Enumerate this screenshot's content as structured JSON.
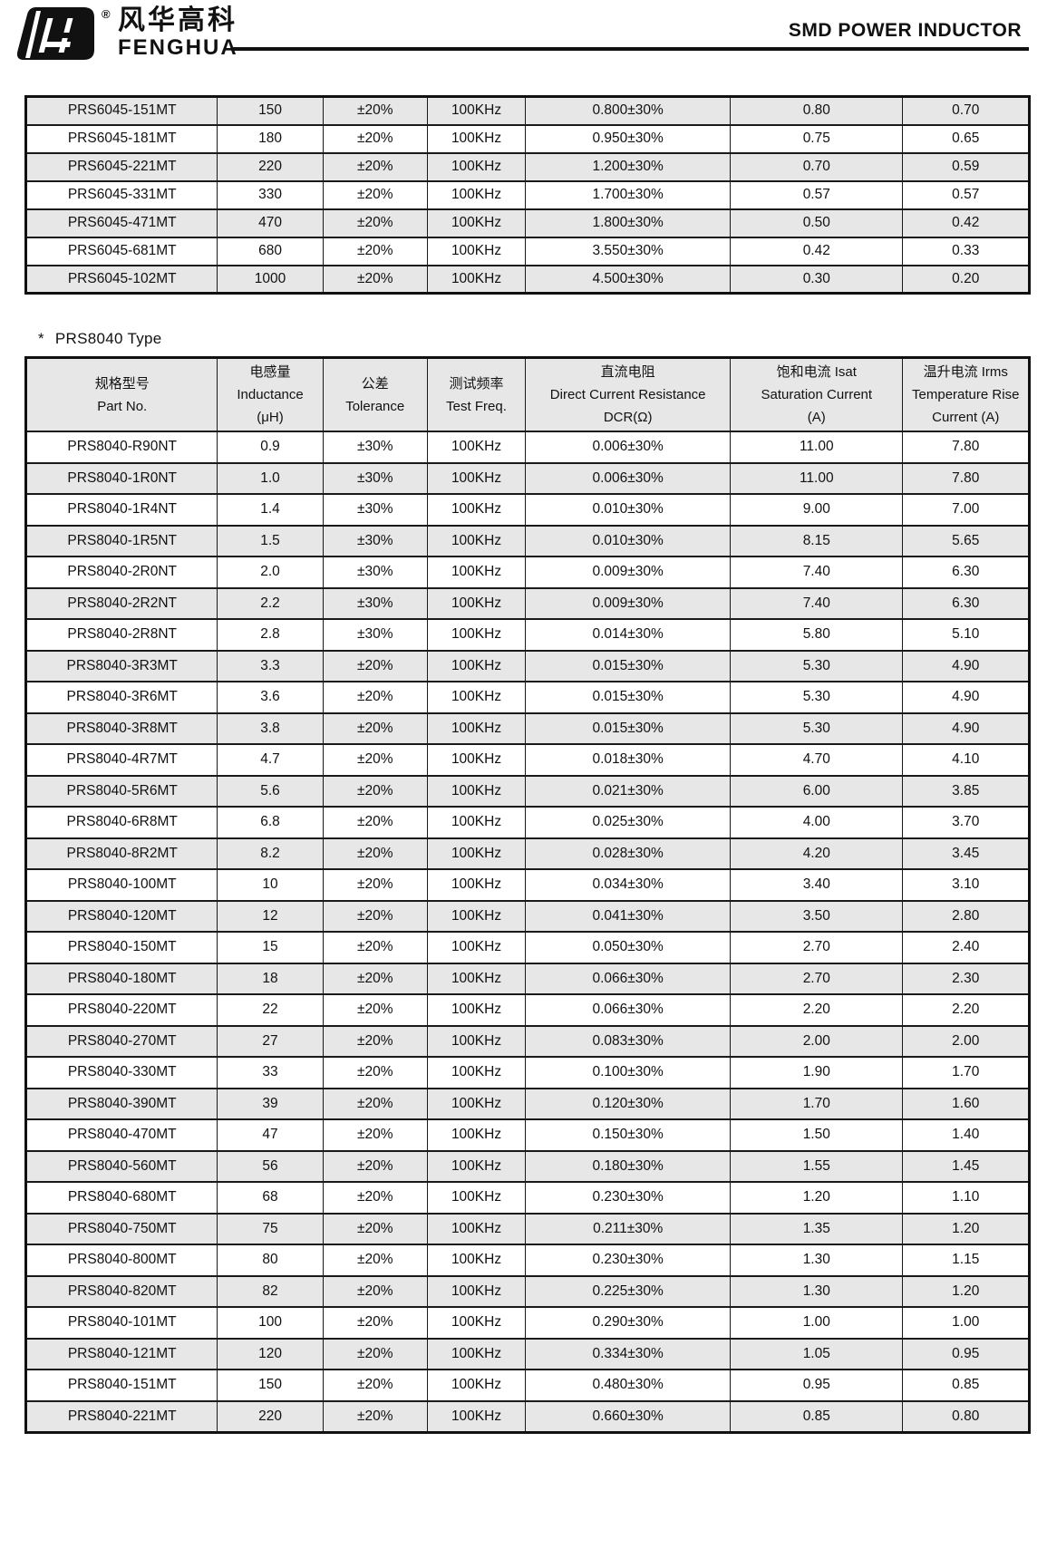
{
  "header": {
    "brand_cn": "风华高科",
    "brand_en": "FENGHUA",
    "reg_mark": "®",
    "title": "SMD POWER INDUCTOR"
  },
  "colors": {
    "row_shade": "#e7e7e7",
    "border": "#1a1a1a",
    "ink": "#111111"
  },
  "prs6045_table": {
    "rows": [
      [
        "PRS6045-151MT",
        "150",
        "±20%",
        "100KHz",
        "0.800±30%",
        "0.80",
        "0.70"
      ],
      [
        "PRS6045-181MT",
        "180",
        "±20%",
        "100KHz",
        "0.950±30%",
        "0.75",
        "0.65"
      ],
      [
        "PRS6045-221MT",
        "220",
        "±20%",
        "100KHz",
        "1.200±30%",
        "0.70",
        "0.59"
      ],
      [
        "PRS6045-331MT",
        "330",
        "±20%",
        "100KHz",
        "1.700±30%",
        "0.57",
        "0.57"
      ],
      [
        "PRS6045-471MT",
        "470",
        "±20%",
        "100KHz",
        "1.800±30%",
        "0.50",
        "0.42"
      ],
      [
        "PRS6045-681MT",
        "680",
        "±20%",
        "100KHz",
        "3.550±30%",
        "0.42",
        "0.33"
      ],
      [
        "PRS6045-102MT",
        "1000",
        "±20%",
        "100KHz",
        "4.500±30%",
        "0.30",
        "0.20"
      ]
    ]
  },
  "section": {
    "star": "*",
    "label": "PRS8040 Type"
  },
  "prs8040_table": {
    "columns": [
      {
        "lines": [
          "规格型号",
          "Part No."
        ]
      },
      {
        "lines": [
          "电感量",
          "Inductance",
          "(μH)"
        ]
      },
      {
        "lines": [
          "公差",
          "Tolerance"
        ]
      },
      {
        "lines": [
          "测试频率",
          "Test Freq."
        ]
      },
      {
        "lines": [
          "直流电阻",
          "Direct Current Resistance",
          "DCR(Ω)"
        ]
      },
      {
        "lines": [
          "饱和电流  Isat",
          "Saturation Current",
          "(A)"
        ]
      },
      {
        "lines": [
          "温升电流  Irms",
          "Temperature Rise",
          "Current (A)"
        ]
      }
    ],
    "rows": [
      [
        "PRS8040-R90NT",
        "0.9",
        "±30%",
        "100KHz",
        "0.006±30%",
        "11.00",
        "7.80"
      ],
      [
        "PRS8040-1R0NT",
        "1.0",
        "±30%",
        "100KHz",
        "0.006±30%",
        "11.00",
        "7.80"
      ],
      [
        "PRS8040-1R4NT",
        "1.4",
        "±30%",
        "100KHz",
        "0.010±30%",
        "9.00",
        "7.00"
      ],
      [
        "PRS8040-1R5NT",
        "1.5",
        "±30%",
        "100KHz",
        "0.010±30%",
        "8.15",
        "5.65"
      ],
      [
        "PRS8040-2R0NT",
        "2.0",
        "±30%",
        "100KHz",
        "0.009±30%",
        "7.40",
        "6.30"
      ],
      [
        "PRS8040-2R2NT",
        "2.2",
        "±30%",
        "100KHz",
        "0.009±30%",
        "7.40",
        "6.30"
      ],
      [
        "PRS8040-2R8NT",
        "2.8",
        "±30%",
        "100KHz",
        "0.014±30%",
        "5.80",
        "5.10"
      ],
      [
        "PRS8040-3R3MT",
        "3.3",
        "±20%",
        "100KHz",
        "0.015±30%",
        "5.30",
        "4.90"
      ],
      [
        "PRS8040-3R6MT",
        "3.6",
        "±20%",
        "100KHz",
        "0.015±30%",
        "5.30",
        "4.90"
      ],
      [
        "PRS8040-3R8MT",
        "3.8",
        "±20%",
        "100KHz",
        "0.015±30%",
        "5.30",
        "4.90"
      ],
      [
        "PRS8040-4R7MT",
        "4.7",
        "±20%",
        "100KHz",
        "0.018±30%",
        "4.70",
        "4.10"
      ],
      [
        "PRS8040-5R6MT",
        "5.6",
        "±20%",
        "100KHz",
        "0.021±30%",
        "6.00",
        "3.85"
      ],
      [
        "PRS8040-6R8MT",
        "6.8",
        "±20%",
        "100KHz",
        "0.025±30%",
        "4.00",
        "3.70"
      ],
      [
        "PRS8040-8R2MT",
        "8.2",
        "±20%",
        "100KHz",
        "0.028±30%",
        "4.20",
        "3.45"
      ],
      [
        "PRS8040-100MT",
        "10",
        "±20%",
        "100KHz",
        "0.034±30%",
        "3.40",
        "3.10"
      ],
      [
        "PRS8040-120MT",
        "12",
        "±20%",
        "100KHz",
        "0.041±30%",
        "3.50",
        "2.80"
      ],
      [
        "PRS8040-150MT",
        "15",
        "±20%",
        "100KHz",
        "0.050±30%",
        "2.70",
        "2.40"
      ],
      [
        "PRS8040-180MT",
        "18",
        "±20%",
        "100KHz",
        "0.066±30%",
        "2.70",
        "2.30"
      ],
      [
        "PRS8040-220MT",
        "22",
        "±20%",
        "100KHz",
        "0.066±30%",
        "2.20",
        "2.20"
      ],
      [
        "PRS8040-270MT",
        "27",
        "±20%",
        "100KHz",
        "0.083±30%",
        "2.00",
        "2.00"
      ],
      [
        "PRS8040-330MT",
        "33",
        "±20%",
        "100KHz",
        "0.100±30%",
        "1.90",
        "1.70"
      ],
      [
        "PRS8040-390MT",
        "39",
        "±20%",
        "100KHz",
        "0.120±30%",
        "1.70",
        "1.60"
      ],
      [
        "PRS8040-470MT",
        "47",
        "±20%",
        "100KHz",
        "0.150±30%",
        "1.50",
        "1.40"
      ],
      [
        "PRS8040-560MT",
        "56",
        "±20%",
        "100KHz",
        "0.180±30%",
        "1.55",
        "1.45"
      ],
      [
        "PRS8040-680MT",
        "68",
        "±20%",
        "100KHz",
        "0.230±30%",
        "1.20",
        "1.10"
      ],
      [
        "PRS8040-750MT",
        "75",
        "±20%",
        "100KHz",
        "0.211±30%",
        "1.35",
        "1.20"
      ],
      [
        "PRS8040-800MT",
        "80",
        "±20%",
        "100KHz",
        "0.230±30%",
        "1.30",
        "1.15"
      ],
      [
        "PRS8040-820MT",
        "82",
        "±20%",
        "100KHz",
        "0.225±30%",
        "1.30",
        "1.20"
      ],
      [
        "PRS8040-101MT",
        "100",
        "±20%",
        "100KHz",
        "0.290±30%",
        "1.00",
        "1.00"
      ],
      [
        "PRS8040-121MT",
        "120",
        "±20%",
        "100KHz",
        "0.334±30%",
        "1.05",
        "0.95"
      ],
      [
        "PRS8040-151MT",
        "150",
        "±20%",
        "100KHz",
        "0.480±30%",
        "0.95",
        "0.85"
      ],
      [
        "PRS8040-221MT",
        "220",
        "±20%",
        "100KHz",
        "0.660±30%",
        "0.85",
        "0.80"
      ]
    ]
  }
}
